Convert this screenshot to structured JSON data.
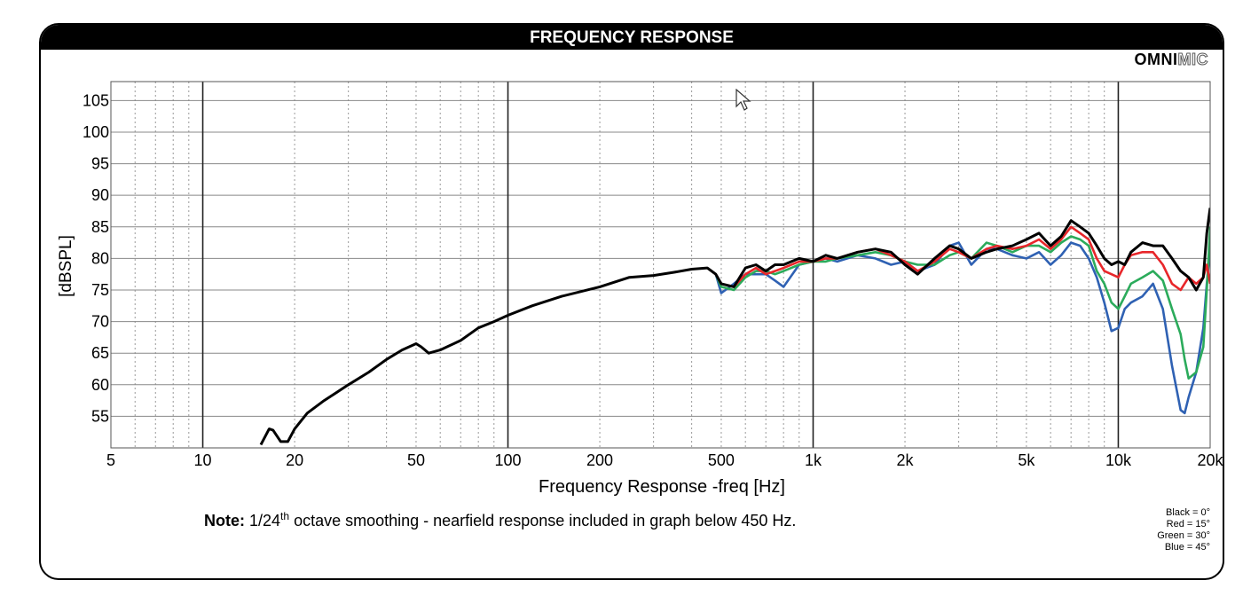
{
  "header": {
    "title": "FREQUENCY RESPONSE"
  },
  "brand": {
    "part1": "OMNI",
    "part2": "MIC"
  },
  "note": {
    "bold": "Note:",
    "pre": " 1/24",
    "sup": "th",
    "post": " octave smoothing - nearfield response included in graph below 450 Hz."
  },
  "legend": [
    "Black = 0°",
    "Red = 15°",
    "Green = 30°",
    "Blue = 45°"
  ],
  "chart_data": {
    "type": "line",
    "title": "",
    "xlabel": "Frequency Response -freq [Hz]",
    "ylabel": "[dBSPL]",
    "xscale": "log",
    "xlim": [
      5,
      20000
    ],
    "ylim": [
      50,
      108
    ],
    "grid": true,
    "x_ticks": [
      {
        "value": 5,
        "label": "5"
      },
      {
        "value": 10,
        "label": "10"
      },
      {
        "value": 20,
        "label": "20"
      },
      {
        "value": 50,
        "label": "50"
      },
      {
        "value": 100,
        "label": "100"
      },
      {
        "value": 200,
        "label": "200"
      },
      {
        "value": 500,
        "label": "500"
      },
      {
        "value": 1000,
        "label": "1k"
      },
      {
        "value": 2000,
        "label": "2k"
      },
      {
        "value": 5000,
        "label": "5k"
      },
      {
        "value": 10000,
        "label": "10k"
      },
      {
        "value": 20000,
        "label": "20k"
      }
    ],
    "y_ticks": [
      55,
      60,
      65,
      70,
      75,
      80,
      85,
      90,
      95,
      100,
      105
    ],
    "series": [
      {
        "name": "Black = 0°",
        "color": "#000000",
        "x": [
          15.5,
          16.5,
          17,
          18,
          19,
          20,
          22,
          25,
          30,
          35,
          40,
          45,
          50,
          52,
          55,
          60,
          70,
          80,
          90,
          100,
          120,
          150,
          200,
          250,
          300,
          350,
          400,
          450,
          480,
          500,
          550,
          600,
          650,
          700,
          750,
          800,
          900,
          1000,
          1100,
          1200,
          1400,
          1600,
          1800,
          2000,
          2200,
          2500,
          2800,
          3000,
          3300,
          3700,
          4000,
          4500,
          5000,
          5500,
          6000,
          6500,
          7000,
          7500,
          8000,
          8500,
          9000,
          9500,
          10000,
          10500,
          11000,
          12000,
          13000,
          14000,
          15000,
          16000,
          17000,
          18000,
          19000,
          19500,
          20000
        ],
        "y": [
          50.5,
          53,
          52.8,
          51,
          51,
          53,
          55.5,
          57.5,
          60,
          62,
          64,
          65.5,
          66.5,
          66,
          65,
          65.5,
          67,
          69,
          70,
          71,
          72.5,
          74,
          75.5,
          77,
          77.3,
          77.8,
          78.3,
          78.5,
          77.5,
          76,
          75.5,
          78.5,
          79,
          78,
          79,
          79,
          80,
          79.5,
          80.5,
          80,
          81,
          81.5,
          81,
          79,
          77.5,
          80,
          82,
          81.5,
          80,
          81,
          81.5,
          82,
          83,
          84,
          82,
          83.5,
          86,
          85,
          84,
          82,
          80,
          79,
          79.5,
          79,
          81,
          82.5,
          82,
          82,
          80,
          78,
          77,
          75,
          77,
          84,
          88
        ]
      },
      {
        "name": "Red = 15°",
        "color": "#e8262a",
        "x": [
          450,
          480,
          500,
          550,
          600,
          650,
          700,
          750,
          800,
          900,
          1000,
          1100,
          1200,
          1400,
          1600,
          1800,
          2000,
          2200,
          2500,
          2800,
          3000,
          3300,
          3700,
          4000,
          4500,
          5000,
          5500,
          6000,
          6500,
          7000,
          7500,
          8000,
          8500,
          9000,
          9500,
          10000,
          10500,
          11000,
          12000,
          13000,
          14000,
          15000,
          16000,
          17000,
          18000,
          19000,
          19500,
          20000
        ],
        "y": [
          78.5,
          77.5,
          76,
          75.5,
          77.5,
          78.5,
          77.5,
          78,
          78.5,
          79.5,
          79.5,
          80,
          80,
          81,
          81.5,
          80.5,
          79.5,
          78,
          79.5,
          81.5,
          81,
          80,
          81.5,
          82,
          81.5,
          82,
          83,
          81.5,
          83,
          85,
          84,
          83,
          80,
          78,
          77.5,
          77,
          79,
          80.5,
          81,
          81,
          79,
          76,
          75,
          77,
          76,
          77,
          79,
          76
        ]
      },
      {
        "name": "Green = 30°",
        "color": "#2bab5b",
        "x": [
          450,
          480,
          500,
          550,
          600,
          650,
          700,
          750,
          800,
          900,
          1000,
          1100,
          1200,
          1400,
          1600,
          1800,
          2000,
          2200,
          2500,
          2800,
          3000,
          3300,
          3700,
          4000,
          4500,
          5000,
          5500,
          6000,
          6500,
          7000,
          7500,
          8000,
          8500,
          9000,
          9500,
          10000,
          10500,
          11000,
          12000,
          13000,
          14000,
          15000,
          16000,
          16500,
          17000,
          18000,
          19000,
          19500,
          20000
        ],
        "y": [
          78.5,
          77.5,
          75.5,
          75,
          77,
          78,
          78,
          77.5,
          78,
          79,
          79.5,
          79.5,
          80,
          80.5,
          81,
          80.5,
          79.5,
          79,
          79,
          80.5,
          81,
          80,
          82.5,
          82,
          81,
          82,
          82,
          81,
          82.5,
          83.5,
          83,
          82,
          78,
          76,
          73,
          72,
          74,
          76,
          77,
          78,
          76.5,
          72,
          68,
          64,
          61,
          62,
          66,
          75,
          85
        ]
      },
      {
        "name": "Blue = 45°",
        "color": "#2f61b3",
        "x": [
          450,
          480,
          500,
          550,
          600,
          650,
          700,
          750,
          800,
          900,
          1000,
          1100,
          1200,
          1400,
          1600,
          1800,
          2000,
          2200,
          2500,
          2800,
          3000,
          3300,
          3700,
          4000,
          4500,
          5000,
          5500,
          6000,
          6500,
          7000,
          7500,
          8000,
          8500,
          9000,
          9500,
          10000,
          10500,
          11000,
          12000,
          13000,
          14000,
          15000,
          16000,
          16500,
          17000,
          18000,
          19000,
          19500,
          20000
        ],
        "y": [
          78.5,
          77.5,
          74.5,
          76,
          77.5,
          77.5,
          77.5,
          76.5,
          75.5,
          79,
          79.5,
          80,
          79.5,
          80.5,
          80,
          79,
          79.5,
          78,
          79,
          82,
          82.5,
          79,
          81.5,
          81.5,
          80.5,
          80,
          81,
          79,
          80.5,
          82.5,
          82,
          80,
          77,
          73,
          68.5,
          69,
          72,
          73,
          74,
          76,
          72,
          63,
          56,
          55.5,
          58,
          62,
          69,
          76,
          81.5
        ]
      }
    ]
  }
}
